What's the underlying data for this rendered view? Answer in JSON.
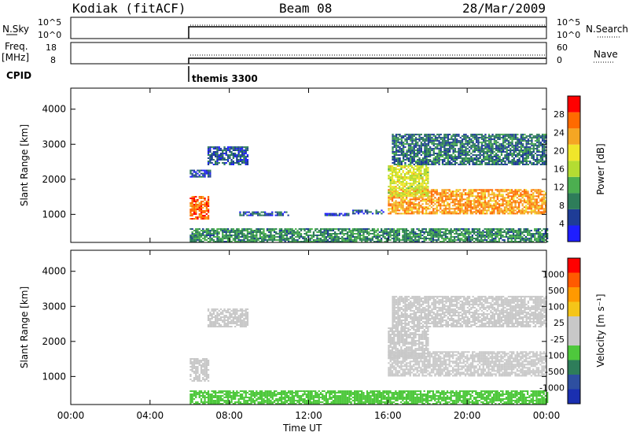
{
  "header": {
    "station": "Kodiak (fitACF)",
    "beam": "Beam 08",
    "date": "28/Mar/2009"
  },
  "top_panels": {
    "nsky_label": "N.Sky",
    "nsky_ticks": [
      "10^5",
      "10^0"
    ],
    "nsearch_ticks": [
      "10^5",
      "10^0"
    ],
    "nsearch_label": "N.Search",
    "freq_label": "Freq.",
    "freq_unit": "[MHz]",
    "freq_ticks": [
      "18",
      "8"
    ],
    "nave_ticks": [
      "60",
      "0"
    ],
    "nave_label": "Nave",
    "cpid_label": "CPID",
    "cpid_value": "themis 3300"
  },
  "colors": {
    "power_scale": [
      "#1e1eff",
      "#1e3c96",
      "#2e7d5a",
      "#4caf50",
      "#b4dc32",
      "#f0e62a",
      "#f5a623",
      "#ff6a00",
      "#ff0000"
    ],
    "velocity_scale": [
      "#1a2fb0",
      "#2e4fa0",
      "#2e7d5a",
      "#4ec83c",
      "#c8c8c8",
      "#c8c8c8",
      "#f5c518",
      "#ff9900",
      "#ff5a00",
      "#ff0000"
    ]
  },
  "chart_data": [
    {
      "type": "heatmap",
      "title": "Power",
      "xlabel": "Time UT",
      "ylabel": "Slant Range [km]",
      "x_ticks": [
        "00:00",
        "04:00",
        "08:00",
        "12:00",
        "16:00",
        "20:00",
        "00:00"
      ],
      "y_ticks": [
        "1000",
        "2000",
        "3000",
        "4000"
      ],
      "xlim": [
        0,
        24
      ],
      "ylim": [
        200,
        4600
      ],
      "colorbar_label": "Power [dB]",
      "colorbar_ticks": [
        "28",
        "24",
        "20",
        "16",
        "12",
        "8",
        "4"
      ],
      "colorbar_range": [
        0,
        32
      ],
      "regions": [
        {
          "t0": 6.0,
          "t1": 6.9,
          "r0": 850,
          "r1": 1500,
          "value": 27
        },
        {
          "t0": 6.0,
          "t1": 7.0,
          "r0": 2050,
          "r1": 2250,
          "value": 6
        },
        {
          "t0": 6.9,
          "t1": 8.9,
          "r0": 2400,
          "r1": 2900,
          "value": 6
        },
        {
          "t0": 8.5,
          "t1": 11.0,
          "r0": 950,
          "r1": 1050,
          "value": 6
        },
        {
          "t0": 12.8,
          "t1": 14.0,
          "r0": 950,
          "r1": 1000,
          "value": 4
        },
        {
          "t0": 14.2,
          "t1": 15.8,
          "r0": 1000,
          "r1": 1100,
          "value": 6
        },
        {
          "t0": 16.0,
          "t1": 24.0,
          "r0": 1000,
          "r1": 1700,
          "value": 24
        },
        {
          "t0": 16.0,
          "t1": 18.0,
          "r0": 1500,
          "r1": 2400,
          "value": 18
        },
        {
          "t0": 16.2,
          "t1": 24.0,
          "r0": 2400,
          "r1": 3300,
          "value": 8
        },
        {
          "t0": 6.0,
          "t1": 24.0,
          "r0": 200,
          "r1": 600,
          "value": 10
        }
      ]
    },
    {
      "type": "heatmap",
      "title": "Velocity",
      "xlabel": "Time UT",
      "ylabel": "Slant Range [km]",
      "x_ticks": [
        "00:00",
        "04:00",
        "08:00",
        "12:00",
        "16:00",
        "20:00",
        "00:00"
      ],
      "y_ticks": [
        "1000",
        "2000",
        "3000",
        "4000"
      ],
      "xlim": [
        0,
        24
      ],
      "ylim": [
        200,
        4600
      ],
      "colorbar_label": "Velocity [m s⁻¹]",
      "colorbar_ticks": [
        "1000",
        "500",
        "100",
        "25",
        "-25",
        "-100",
        "-500",
        "-1000"
      ],
      "colorbar_range": [
        -1000,
        1000
      ],
      "regions": [
        {
          "t0": 6.0,
          "t1": 6.9,
          "r0": 850,
          "r1": 1500,
          "value": 0
        },
        {
          "t0": 6.9,
          "t1": 8.9,
          "r0": 2400,
          "r1": 2900,
          "value": 0
        },
        {
          "t0": 16.0,
          "t1": 24.0,
          "r0": 1000,
          "r1": 1700,
          "value": 0
        },
        {
          "t0": 16.0,
          "t1": 18.0,
          "r0": 1500,
          "r1": 2400,
          "value": 0
        },
        {
          "t0": 16.2,
          "t1": 24.0,
          "r0": 2400,
          "r1": 3300,
          "value": -120
        },
        {
          "t0": 6.0,
          "t1": 24.0,
          "r0": 200,
          "r1": 600,
          "value": -300
        }
      ]
    }
  ]
}
